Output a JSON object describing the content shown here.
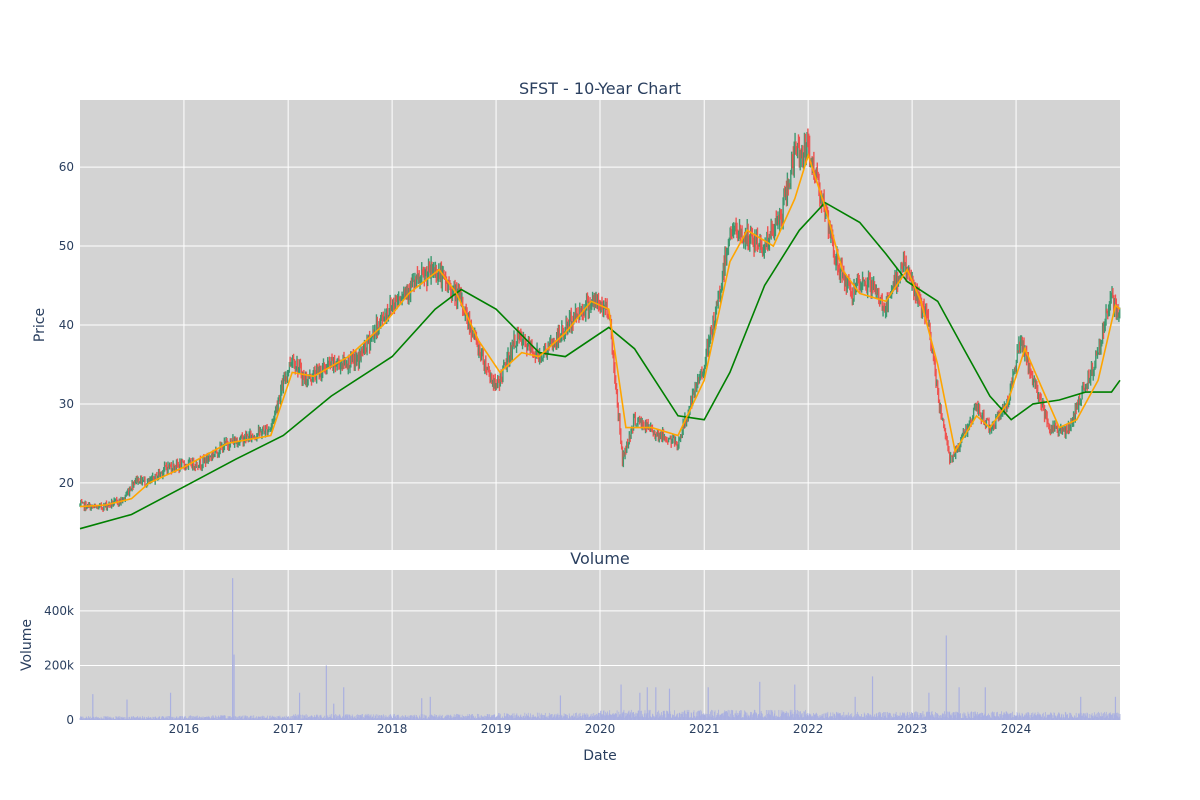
{
  "chart_data": [
    {
      "type": "candlestick",
      "title": "SFST - 10-Year Chart",
      "xlabel": "",
      "ylabel": "Price",
      "ylim": [
        11.5,
        68.5
      ],
      "yticks": [
        20,
        30,
        40,
        50,
        60
      ],
      "xrange": [
        "2015-01-01",
        "2024-12-31"
      ],
      "grid": true,
      "legend": "none",
      "colors": {
        "background": "#d3d3d3",
        "increasing": "#3d9970",
        "decreasing": "#ef5350",
        "ma_short": "#ffa500",
        "ma_long": "#008000",
        "grid": "#ffffff"
      },
      "price_path": [
        [
          "2015-01-01",
          17.2
        ],
        [
          "2015-03-01",
          16.8
        ],
        [
          "2015-06-01",
          17.8
        ],
        [
          "2015-07-15",
          20.5
        ],
        [
          "2015-09-01",
          20.0
        ],
        [
          "2015-11-01",
          22.0
        ],
        [
          "2016-03-01",
          22.5
        ],
        [
          "2016-06-01",
          25.0
        ],
        [
          "2016-09-01",
          26.0
        ],
        [
          "2016-11-01",
          27.0
        ],
        [
          "2016-12-01",
          31.0
        ],
        [
          "2017-01-15",
          36.0
        ],
        [
          "2017-03-01",
          33.0
        ],
        [
          "2017-06-01",
          35.0
        ],
        [
          "2017-09-01",
          35.5
        ],
        [
          "2017-12-01",
          41.0
        ],
        [
          "2018-02-01",
          44.0
        ],
        [
          "2018-06-01",
          47.0
        ],
        [
          "2018-09-01",
          43.0
        ],
        [
          "2018-11-01",
          37.0
        ],
        [
          "2019-01-01",
          32.0
        ],
        [
          "2019-03-15",
          38.5
        ],
        [
          "2019-06-01",
          36.0
        ],
        [
          "2019-08-01",
          38.0
        ],
        [
          "2019-10-01",
          41.0
        ],
        [
          "2019-12-01",
          43.0
        ],
        [
          "2020-02-01",
          42.0
        ],
        [
          "2020-03-20",
          23.0
        ],
        [
          "2020-05-01",
          28.0
        ],
        [
          "2020-08-01",
          26.0
        ],
        [
          "2020-10-01",
          25.0
        ],
        [
          "2020-11-15",
          30.0
        ],
        [
          "2021-01-01",
          35.0
        ],
        [
          "2021-02-15",
          42.0
        ],
        [
          "2021-04-01",
          52.0
        ],
        [
          "2021-06-01",
          51.0
        ],
        [
          "2021-08-01",
          50.0
        ],
        [
          "2021-10-01",
          54.0
        ],
        [
          "2021-11-15",
          62.0
        ],
        [
          "2022-01-01",
          62.0
        ],
        [
          "2022-02-15",
          57.0
        ],
        [
          "2022-04-01",
          49.0
        ],
        [
          "2022-06-01",
          44.0
        ],
        [
          "2022-08-01",
          45.5
        ],
        [
          "2022-10-01",
          42.0
        ],
        [
          "2022-12-01",
          48.0
        ],
        [
          "2023-01-15",
          44.0
        ],
        [
          "2023-03-01",
          40.0
        ],
        [
          "2023-04-01",
          31.0
        ],
        [
          "2023-05-15",
          23.0
        ],
        [
          "2023-07-01",
          26.0
        ],
        [
          "2023-08-15",
          29.5
        ],
        [
          "2023-10-01",
          27.0
        ],
        [
          "2023-12-01",
          30.0
        ],
        [
          "2024-01-15",
          38.0
        ],
        [
          "2024-03-01",
          33.0
        ],
        [
          "2024-05-01",
          27.0
        ],
        [
          "2024-07-01",
          26.5
        ],
        [
          "2024-08-15",
          31.0
        ],
        [
          "2024-10-01",
          35.0
        ],
        [
          "2024-12-01",
          43.5
        ],
        [
          "2024-12-31",
          40.5
        ]
      ],
      "series": [
        {
          "values": [
            [
              "2015-01-01",
              17.0
            ],
            [
              "2015-04-01",
              17.2
            ],
            [
              "2015-07-01",
              18.0
            ],
            [
              "2015-09-01",
              20.0
            ],
            [
              "2016-01-01",
              22.0
            ],
            [
              "2016-06-01",
              25.0
            ],
            [
              "2016-11-01",
              26.0
            ],
            [
              "2017-01-15",
              34.0
            ],
            [
              "2017-04-01",
              33.5
            ],
            [
              "2017-08-01",
              36.0
            ],
            [
              "2017-12-01",
              40.0
            ],
            [
              "2018-03-01",
              44.0
            ],
            [
              "2018-06-15",
              47.0
            ],
            [
              "2018-08-15",
              44.0
            ],
            [
              "2018-11-01",
              38.0
            ],
            [
              "2019-01-15",
              34.0
            ],
            [
              "2019-04-01",
              36.5
            ],
            [
              "2019-06-01",
              36.0
            ],
            [
              "2019-09-01",
              39.0
            ],
            [
              "2019-12-01",
              43.0
            ],
            [
              "2020-02-01",
              42.0
            ],
            [
              "2020-04-01",
              27.0
            ],
            [
              "2020-07-01",
              27.0
            ],
            [
              "2020-10-01",
              26.0
            ],
            [
              "2021-01-01",
              33.0
            ],
            [
              "2021-04-01",
              48.0
            ],
            [
              "2021-06-01",
              52.0
            ],
            [
              "2021-09-01",
              50.0
            ],
            [
              "2021-11-15",
              56.0
            ],
            [
              "2022-01-01",
              61.5
            ],
            [
              "2022-03-01",
              55.0
            ],
            [
              "2022-05-01",
              47.0
            ],
            [
              "2022-07-01",
              44.0
            ],
            [
              "2022-10-01",
              43.0
            ],
            [
              "2022-12-15",
              47.0
            ],
            [
              "2023-02-01",
              43.0
            ],
            [
              "2023-04-01",
              35.0
            ],
            [
              "2023-06-01",
              24.0
            ],
            [
              "2023-08-15",
              28.5
            ],
            [
              "2023-10-01",
              27.0
            ],
            [
              "2023-12-01",
              30.0
            ],
            [
              "2024-02-01",
              37.0
            ],
            [
              "2024-04-01",
              32.0
            ],
            [
              "2024-06-01",
              27.0
            ],
            [
              "2024-08-01",
              28.0
            ],
            [
              "2024-10-15",
              33.0
            ],
            [
              "2024-12-15",
              42.5
            ],
            [
              "2024-12-31",
              42.0
            ]
          ]
        },
        {
          "values": [
            [
              "2015-01-01",
              14.2
            ],
            [
              "2015-07-01",
              16.0
            ],
            [
              "2016-01-01",
              19.5
            ],
            [
              "2016-07-01",
              23.0
            ],
            [
              "2016-12-15",
              26.0
            ],
            [
              "2017-06-01",
              31.0
            ],
            [
              "2018-01-01",
              36.0
            ],
            [
              "2018-06-01",
              42.0
            ],
            [
              "2018-09-01",
              44.5
            ],
            [
              "2019-01-01",
              42.0
            ],
            [
              "2019-06-01",
              36.5
            ],
            [
              "2019-09-01",
              36.0
            ],
            [
              "2020-02-01",
              39.7
            ],
            [
              "2020-05-01",
              37.0
            ],
            [
              "2020-10-01",
              28.5
            ],
            [
              "2021-01-01",
              28.0
            ],
            [
              "2021-04-01",
              34.0
            ],
            [
              "2021-08-01",
              45.0
            ],
            [
              "2021-12-01",
              52.0
            ],
            [
              "2022-03-01",
              55.5
            ],
            [
              "2022-07-01",
              53.0
            ],
            [
              "2022-10-01",
              49.0
            ],
            [
              "2022-12-15",
              45.5
            ],
            [
              "2023-04-01",
              43.0
            ],
            [
              "2023-07-01",
              37.0
            ],
            [
              "2023-10-01",
              31.0
            ],
            [
              "2023-12-15",
              28.0
            ],
            [
              "2024-03-01",
              30.0
            ],
            [
              "2024-06-01",
              30.5
            ],
            [
              "2024-09-01",
              31.5
            ],
            [
              "2024-12-01",
              31.5
            ],
            [
              "2024-12-31",
              33.0
            ]
          ]
        }
      ]
    },
    {
      "type": "bar",
      "title": "Volume",
      "xlabel": "Date",
      "ylabel": "Volume",
      "ylim": [
        0,
        550000
      ],
      "yticks": [
        0,
        200000,
        400000
      ],
      "ytick_labels": [
        "0",
        "200k",
        "400k"
      ],
      "xticks": [
        "2016",
        "2017",
        "2018",
        "2019",
        "2020",
        "2021",
        "2022",
        "2023",
        "2024"
      ],
      "grid": true,
      "colors": {
        "bar": "#aab0e0",
        "background": "#d3d3d3"
      },
      "typical_volume_by_year": [
        [
          "2015",
          10000
        ],
        [
          "2016",
          12000
        ],
        [
          "2017",
          15000
        ],
        [
          "2018",
          15000
        ],
        [
          "2019",
          18000
        ],
        [
          "2020",
          25000
        ],
        [
          "2021",
          25000
        ],
        [
          "2022",
          20000
        ],
        [
          "2023",
          22000
        ],
        [
          "2024",
          20000
        ]
      ],
      "spikes": [
        [
          "2015-02-15",
          95000
        ],
        [
          "2015-06-15",
          75000
        ],
        [
          "2015-11-15",
          100000
        ],
        [
          "2016-06-20",
          520000
        ],
        [
          "2016-06-25",
          240000
        ],
        [
          "2017-02-10",
          100000
        ],
        [
          "2017-05-15",
          200000
        ],
        [
          "2017-06-10",
          60000
        ],
        [
          "2017-07-15",
          120000
        ],
        [
          "2018-04-15",
          80000
        ],
        [
          "2018-05-15",
          85000
        ],
        [
          "2019-08-15",
          90000
        ],
        [
          "2020-03-15",
          130000
        ],
        [
          "2020-05-20",
          100000
        ],
        [
          "2020-06-15",
          120000
        ],
        [
          "2020-07-15",
          120000
        ],
        [
          "2020-09-01",
          115000
        ],
        [
          "2021-01-15",
          120000
        ],
        [
          "2021-07-15",
          140000
        ],
        [
          "2021-11-15",
          130000
        ],
        [
          "2022-06-15",
          85000
        ],
        [
          "2022-08-15",
          160000
        ],
        [
          "2023-03-01",
          100000
        ],
        [
          "2023-05-01",
          310000
        ],
        [
          "2023-06-15",
          120000
        ],
        [
          "2023-09-15",
          120000
        ],
        [
          "2024-08-15",
          85000
        ],
        [
          "2024-12-15",
          85000
        ]
      ]
    }
  ]
}
